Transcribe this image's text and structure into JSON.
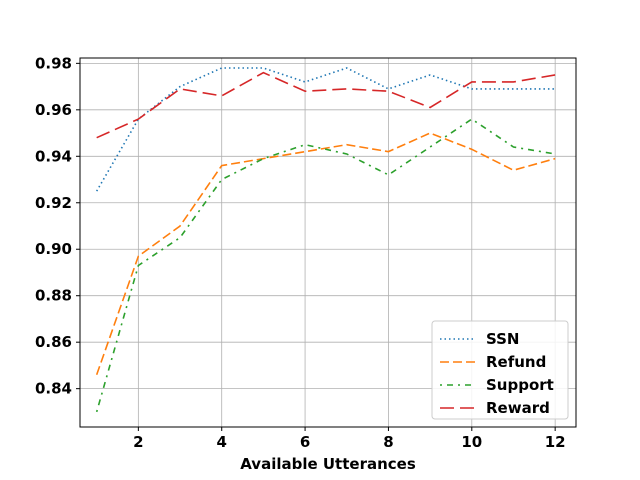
{
  "chart_data": {
    "type": "line",
    "title": "",
    "xlabel": "Available Utterances",
    "ylabel": "",
    "xlim": [
      0.6,
      12.5
    ],
    "ylim": [
      0.8235,
      0.9823
    ],
    "x_ticks": [
      2,
      4,
      6,
      8,
      10,
      12
    ],
    "y_ticks": [
      0.84,
      0.86,
      0.88,
      0.9,
      0.92,
      0.94,
      0.96,
      0.98
    ],
    "grid": true,
    "legend_position": "lower right",
    "x": [
      1,
      2,
      3,
      4,
      5,
      6,
      7,
      8,
      9,
      10,
      11,
      12
    ],
    "series": [
      {
        "name": "SSN",
        "color": "#1f77b4",
        "dash": "dotted",
        "values": [
          0.925,
          0.956,
          0.97,
          0.978,
          0.978,
          0.972,
          0.978,
          0.969,
          0.975,
          0.969,
          0.969,
          0.969
        ]
      },
      {
        "name": "Refund",
        "color": "#ff7f0e",
        "dash": "dashed",
        "values": [
          0.846,
          0.897,
          0.91,
          0.936,
          0.939,
          0.942,
          0.945,
          0.942,
          0.95,
          0.943,
          0.934,
          0.939
        ]
      },
      {
        "name": "Support",
        "color": "#2ca02c",
        "dash": "dashdot",
        "values": [
          0.83,
          0.893,
          0.905,
          0.93,
          0.939,
          0.945,
          0.941,
          0.932,
          0.944,
          0.956,
          0.944,
          0.941
        ]
      },
      {
        "name": "Reward",
        "color": "#d62728",
        "dash": "longdash",
        "values": [
          0.948,
          0.956,
          0.969,
          0.966,
          0.976,
          0.968,
          0.969,
          0.968,
          0.961,
          0.972,
          0.972,
          0.975
        ]
      }
    ]
  }
}
